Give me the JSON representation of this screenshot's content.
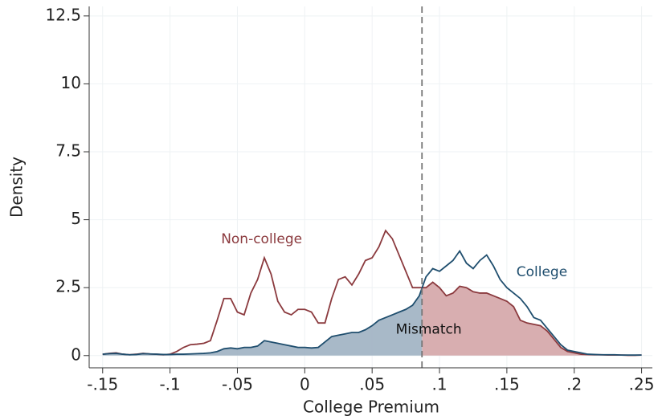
{
  "chart_data": {
    "type": "density",
    "x_label": "College Premium",
    "y_label": "Density",
    "xlim": [
      -0.16,
      0.258
    ],
    "ylim": [
      -0.45,
      12.85
    ],
    "xticks": [
      {
        "value": -0.15,
        "label": "-.15"
      },
      {
        "value": -0.1,
        "label": "-.1"
      },
      {
        "value": -0.05,
        "label": "-.05"
      },
      0,
      {
        "value": 0.05,
        "label": ".05"
      },
      {
        "value": 0.1,
        "label": ".1"
      },
      {
        "value": 0.15,
        "label": ".15"
      },
      {
        "value": 0.2,
        "label": ".2"
      },
      {
        "value": 0.25,
        "label": ".25"
      }
    ],
    "yticks": [
      0,
      2.5,
      5,
      7.5,
      10,
      12.5
    ],
    "grid": true,
    "cutoff": 0.087,
    "x": [
      -0.15,
      -0.145,
      -0.14,
      -0.135,
      -0.13,
      -0.125,
      -0.12,
      -0.115,
      -0.11,
      -0.105,
      -0.1,
      -0.095,
      -0.09,
      -0.085,
      -0.08,
      -0.075,
      -0.07,
      -0.065,
      -0.06,
      -0.055,
      -0.05,
      -0.045,
      -0.04,
      -0.035,
      -0.03,
      -0.025,
      -0.02,
      -0.015,
      -0.01,
      -0.005,
      0,
      0.005,
      0.01,
      0.015,
      0.02,
      0.025,
      0.03,
      0.035,
      0.04,
      0.045,
      0.05,
      0.055,
      0.06,
      0.065,
      0.07,
      0.075,
      0.08,
      0.085,
      0.09,
      0.095,
      0.1,
      0.105,
      0.11,
      0.115,
      0.12,
      0.125,
      0.13,
      0.135,
      0.14,
      0.145,
      0.15,
      0.155,
      0.16,
      0.165,
      0.17,
      0.175,
      0.18,
      0.185,
      0.19,
      0.195,
      0.2,
      0.205,
      0.21,
      0.215,
      0.22,
      0.225,
      0.23,
      0.235,
      0.24,
      0.245,
      0.25
    ],
    "series": [
      {
        "name": "Non-college",
        "color": "#8b3a3e",
        "fill": "#d4a5a7",
        "shade": "above_cutoff",
        "label_x": -0.032,
        "label_y": 4.28,
        "values": [
          0.05,
          0.08,
          0.1,
          0.05,
          0.03,
          0.05,
          0.08,
          0.06,
          0.05,
          0.03,
          0.05,
          0.15,
          0.3,
          0.4,
          0.42,
          0.45,
          0.55,
          1.3,
          2.1,
          2.1,
          1.6,
          1.5,
          2.3,
          2.8,
          3.6,
          3.0,
          2.0,
          1.6,
          1.5,
          1.7,
          1.7,
          1.6,
          1.2,
          1.2,
          2.1,
          2.8,
          2.9,
          2.6,
          3.0,
          3.5,
          3.6,
          4.0,
          4.6,
          4.3,
          3.7,
          3.1,
          2.5,
          2.5,
          2.5,
          2.7,
          2.5,
          2.2,
          2.3,
          2.55,
          2.5,
          2.35,
          2.3,
          2.3,
          2.2,
          2.1,
          2.0,
          1.8,
          1.3,
          1.2,
          1.15,
          1.1,
          0.9,
          0.6,
          0.3,
          0.15,
          0.1,
          0.05,
          0.04,
          0.03,
          0.03,
          0.02,
          0.02,
          0.02,
          0.01,
          0.01,
          0.02
        ]
      },
      {
        "name": "College",
        "color": "#1f4e6e",
        "fill": "#9fb1c2",
        "shade": "below_cutoff",
        "label_x": 0.176,
        "label_y": 3.07,
        "values": [
          0.05,
          0.07,
          0.08,
          0.05,
          0.03,
          0.04,
          0.07,
          0.06,
          0.05,
          0.04,
          0.04,
          0.05,
          0.05,
          0.06,
          0.07,
          0.08,
          0.1,
          0.15,
          0.25,
          0.28,
          0.25,
          0.3,
          0.3,
          0.35,
          0.55,
          0.5,
          0.45,
          0.4,
          0.35,
          0.3,
          0.3,
          0.28,
          0.3,
          0.5,
          0.7,
          0.75,
          0.8,
          0.85,
          0.85,
          0.95,
          1.1,
          1.3,
          1.4,
          1.5,
          1.6,
          1.7,
          1.85,
          2.2,
          2.9,
          3.2,
          3.1,
          3.3,
          3.5,
          3.85,
          3.4,
          3.2,
          3.5,
          3.7,
          3.3,
          2.8,
          2.5,
          2.3,
          2.1,
          1.8,
          1.4,
          1.3,
          1.0,
          0.7,
          0.4,
          0.2,
          0.15,
          0.1,
          0.05,
          0.04,
          0.03,
          0.03,
          0.03,
          0.02,
          0.02,
          0.02,
          0.02
        ]
      }
    ],
    "annotations": [
      {
        "text": "Mismatch",
        "x": 0.092,
        "y": 0.95
      }
    ]
  }
}
